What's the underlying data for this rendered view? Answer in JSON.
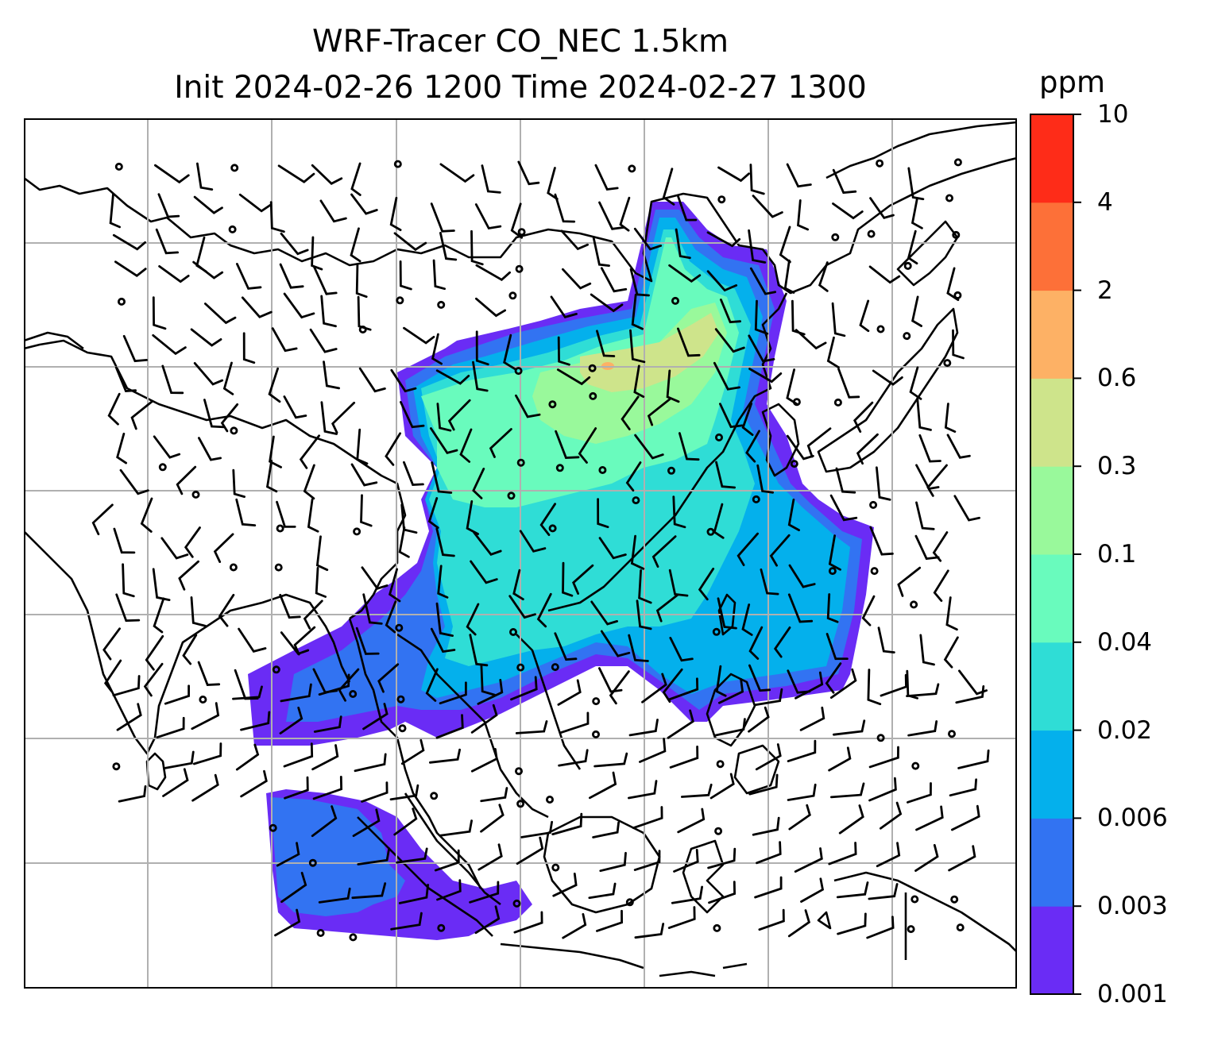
{
  "title": {
    "line1": "WRF-Tracer CO_NEC 1.5km",
    "line2": "Init 2024-02-26 1200 Time 2024-02-27 1300"
  },
  "colorbar": {
    "unit": "ppm",
    "ticks": [
      "0.001",
      "0.003",
      "0.006",
      "0.02",
      "0.04",
      "0.1",
      "0.3",
      "0.6",
      "2",
      "4",
      "10"
    ],
    "colors": [
      "#6a2cf5",
      "#3273f2",
      "#04b0ec",
      "#2fddd6",
      "#69fbbd",
      "#99f99b",
      "#cee48b",
      "#fdb165",
      "#fd7038",
      "#fe2c18"
    ]
  },
  "map": {
    "variable": "CO_NEC tracer concentration",
    "features": [
      "coastlines",
      "country-borders",
      "lat-lon-gridlines",
      "wind-barbs",
      "calm-wind-circles"
    ]
  }
}
